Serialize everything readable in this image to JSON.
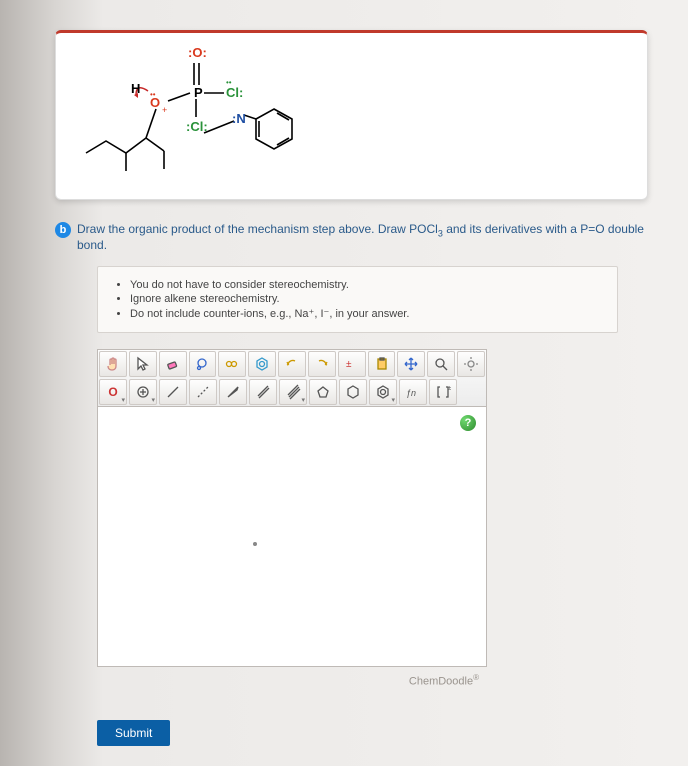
{
  "molecule": {
    "atom_labels": {
      "O_top": ":O:",
      "H": "H",
      "Cl_right": "Cl:",
      "Cl_bottom": ":Cl:",
      "O_plus": "O",
      "N": ":N"
    },
    "colors": {
      "O": "#d9391e",
      "Cl": "#2a923a",
      "N": "#1f4fa3",
      "H": "#000000",
      "bond": "#000000",
      "arrow": "#c62828"
    }
  },
  "question": {
    "badge": "b",
    "text_pre": "Draw the organic product of the mechanism step above. Draw POCl",
    "sub": "3",
    "text_post": " and its derivatives with a P=O double bond."
  },
  "hints": [
    "You do not have to consider stereochemistry.",
    "Ignore alkene stereochemistry.",
    "Do not include counter-ions, e.g., Na⁺, I⁻, in your answer."
  ],
  "toolbar": {
    "row1": [
      {
        "name": "pointer-icon",
        "glyph": "hand"
      },
      {
        "name": "select-icon",
        "glyph": "cursor"
      },
      {
        "name": "eraser-icon",
        "glyph": "eraser"
      },
      {
        "name": "lasso-icon",
        "glyph": "lasso"
      },
      {
        "name": "chain-icon",
        "glyph": "chain"
      },
      {
        "name": "template-icon",
        "glyph": "benzene"
      },
      {
        "name": "undo-icon",
        "glyph": "undo"
      },
      {
        "name": "redo-icon",
        "glyph": "redo"
      },
      {
        "name": "charge-icon",
        "glyph": "plusminus"
      },
      {
        "name": "paste-icon",
        "glyph": "clipboard"
      },
      {
        "name": "move-icon",
        "glyph": "arrows"
      },
      {
        "name": "zoom-icon",
        "glyph": "zoom"
      },
      {
        "name": "settings-icon",
        "glyph": "gears"
      }
    ],
    "row2": [
      {
        "name": "atom-o-btn",
        "label": "O",
        "dropdown": true
      },
      {
        "name": "charge-plus-btn",
        "glyph": "chargeplus",
        "dropdown": true
      },
      {
        "name": "bond-single-btn",
        "glyph": "bond1"
      },
      {
        "name": "bond-dashed-btn",
        "glyph": "bonddash"
      },
      {
        "name": "bond-wedge-btn",
        "glyph": "wedge"
      },
      {
        "name": "bond-double-btn",
        "glyph": "bond2"
      },
      {
        "name": "bond-triple-btn",
        "glyph": "bond3",
        "dropdown": true
      },
      {
        "name": "ring5-btn",
        "glyph": "ring5"
      },
      {
        "name": "ring6-btn",
        "glyph": "ring6"
      },
      {
        "name": "ring-arom-btn",
        "glyph": "ringar",
        "dropdown": true
      },
      {
        "name": "func-btn",
        "glyph": "fn"
      },
      {
        "name": "bracket-btn",
        "glyph": "bracket"
      }
    ]
  },
  "canvas": {
    "help": "?",
    "watermark": "ChemDoodle"
  },
  "submit_label": "Submit"
}
